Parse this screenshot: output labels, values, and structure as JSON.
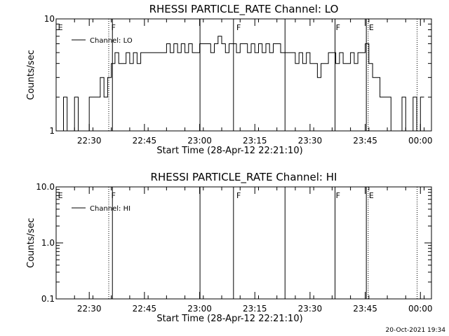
{
  "chart_data": [
    {
      "type": "line",
      "title": "RHESSI PARTICLE_RATE Channel: LO",
      "xlabel": "Start Time (28-Apr-12 22:21:10)",
      "ylabel": "Counts/sec",
      "y_scale": "log",
      "ylim": [
        1,
        10
      ],
      "y_ticks": [
        "1",
        "10"
      ],
      "x_range_min": [
        0,
        102
      ],
      "x_ticks": [
        {
          "t": 9,
          "label": "22:30"
        },
        {
          "t": 24,
          "label": "22:45"
        },
        {
          "t": 39,
          "label": "23:00"
        },
        {
          "t": 54,
          "label": "23:15"
        },
        {
          "t": 69,
          "label": "23:30"
        },
        {
          "t": 84,
          "label": "23:45"
        },
        {
          "t": 99,
          "label": "00:00"
        }
      ],
      "legend": {
        "label": "Channel: LO",
        "placement": "top-left"
      },
      "flag_marks": [
        {
          "t": 0.5,
          "label": "E"
        },
        {
          "t": 15,
          "label": "F"
        },
        {
          "t": 49,
          "label": "F"
        },
        {
          "t": 76,
          "label": "F"
        },
        {
          "t": 85,
          "label": "E"
        }
      ],
      "solid_lines_min": [
        15.3,
        39.1,
        48.2,
        62.2,
        75.8,
        84.3
      ],
      "dotted_lines_min": [
        14.3,
        84.8,
        98.1
      ],
      "series": [
        {
          "x": [
            0,
            1,
            2,
            3,
            4,
            5,
            6,
            7,
            8,
            9,
            10,
            11,
            12,
            13,
            14,
            15,
            16,
            17,
            18,
            19,
            20,
            21,
            22,
            23,
            24,
            25,
            26,
            27,
            28,
            29,
            30,
            31,
            32,
            33,
            34,
            35,
            36,
            37,
            38,
            39,
            40,
            41,
            42,
            43,
            44,
            45,
            46,
            47,
            48,
            49,
            50,
            51,
            52,
            53,
            54,
            55,
            56,
            57,
            58,
            59,
            60,
            61,
            62,
            63,
            64,
            65,
            66,
            67,
            68,
            69,
            70,
            71,
            72,
            73,
            74,
            75,
            76,
            77,
            78,
            79,
            80,
            81,
            82,
            83,
            84,
            85,
            86,
            87,
            88,
            89,
            90,
            91,
            92,
            93,
            94,
            95,
            96,
            97,
            98,
            99
          ],
          "values": [
            1,
            1,
            2,
            1,
            1,
            2,
            1,
            1,
            1,
            2,
            2,
            2,
            3,
            2,
            3,
            4,
            5,
            4,
            4,
            5,
            4,
            5,
            4,
            5,
            5,
            5,
            5,
            5,
            5,
            5,
            6,
            5,
            6,
            5,
            6,
            5,
            6,
            5,
            5,
            6,
            6,
            6,
            5,
            6,
            7,
            6,
            5,
            6,
            6,
            5,
            6,
            6,
            5,
            6,
            5,
            6,
            5,
            6,
            5,
            6,
            6,
            5,
            5,
            5,
            5,
            4,
            5,
            4,
            5,
            4,
            4,
            3,
            4,
            4,
            5,
            5,
            4,
            5,
            4,
            4,
            5,
            4,
            5,
            5,
            6,
            4,
            3,
            3,
            2,
            2,
            2,
            1,
            1,
            1,
            2,
            1,
            1,
            2,
            1,
            2
          ]
        }
      ]
    },
    {
      "type": "line",
      "title": "RHESSI PARTICLE_RATE Channel: HI",
      "xlabel": "Start Time (28-Apr-12 22:21:10)",
      "ylabel": "Counts/sec",
      "y_scale": "log",
      "ylim": [
        0.1,
        10
      ],
      "y_ticks": [
        "0.1",
        "1.0",
        "10.0"
      ],
      "x_range_min": [
        0,
        102
      ],
      "x_ticks": [
        {
          "t": 9,
          "label": "22:30"
        },
        {
          "t": 24,
          "label": "22:45"
        },
        {
          "t": 39,
          "label": "23:00"
        },
        {
          "t": 54,
          "label": "23:15"
        },
        {
          "t": 69,
          "label": "23:30"
        },
        {
          "t": 84,
          "label": "23:45"
        },
        {
          "t": 99,
          "label": "00:00"
        }
      ],
      "legend": {
        "label": "Channel: HI",
        "placement": "top-left"
      },
      "flag_marks": [
        {
          "t": 0.5,
          "label": "E"
        },
        {
          "t": 15,
          "label": "F"
        },
        {
          "t": 49,
          "label": "F"
        },
        {
          "t": 76,
          "label": "F"
        },
        {
          "t": 85,
          "label": "E"
        }
      ],
      "solid_lines_min": [
        15.3,
        39.1,
        48.2,
        62.2,
        75.8,
        84.3
      ],
      "dotted_lines_min": [
        14.3,
        84.8,
        98.1
      ],
      "series": []
    }
  ],
  "footer": {
    "timestamp": "20-Oct-2021 19:34"
  }
}
